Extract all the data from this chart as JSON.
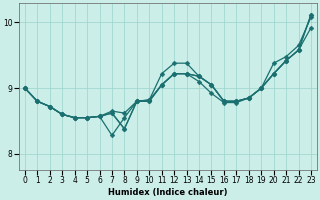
{
  "xlabel": "Humidex (Indice chaleur)",
  "bg_color": "#cceee8",
  "grid_color": "#99d4cc",
  "line_color": "#1a7070",
  "xlim": [
    -0.5,
    23.5
  ],
  "ylim": [
    7.75,
    10.3
  ],
  "yticks": [
    8,
    9,
    10
  ],
  "xticks": [
    0,
    1,
    2,
    3,
    4,
    5,
    6,
    7,
    8,
    9,
    10,
    11,
    12,
    13,
    14,
    15,
    16,
    17,
    18,
    19,
    20,
    21,
    22,
    23
  ],
  "lines": [
    [
      9.0,
      8.8,
      8.72,
      8.6,
      8.55,
      8.55,
      8.57,
      8.62,
      8.38,
      8.8,
      8.82,
      9.22,
      9.38,
      9.38,
      9.18,
      9.05,
      8.8,
      8.8,
      8.85,
      9.0,
      9.38,
      9.48,
      9.65,
      10.08
    ],
    [
      9.0,
      8.8,
      8.72,
      8.6,
      8.55,
      8.55,
      8.57,
      8.62,
      8.38,
      8.8,
      8.82,
      9.05,
      9.22,
      9.22,
      9.18,
      9.05,
      8.8,
      8.8,
      8.85,
      9.0,
      9.22,
      9.42,
      9.58,
      9.92
    ],
    [
      9.0,
      8.8,
      8.72,
      8.6,
      8.55,
      8.55,
      8.57,
      8.65,
      8.62,
      8.8,
      8.8,
      9.05,
      9.22,
      9.22,
      9.18,
      9.05,
      8.8,
      8.8,
      8.85,
      9.0,
      9.22,
      9.42,
      9.58,
      10.12
    ],
    [
      9.0,
      8.8,
      8.72,
      8.6,
      8.55,
      8.55,
      8.57,
      8.28,
      8.55,
      8.8,
      8.8,
      9.05,
      9.22,
      9.22,
      9.1,
      8.92,
      8.78,
      8.78,
      8.85,
      9.0,
      9.22,
      9.42,
      9.58,
      10.12
    ]
  ],
  "marker_size": 2.5,
  "line_width": 0.9,
  "axis_fontsize": 6,
  "tick_fontsize": 5.5
}
